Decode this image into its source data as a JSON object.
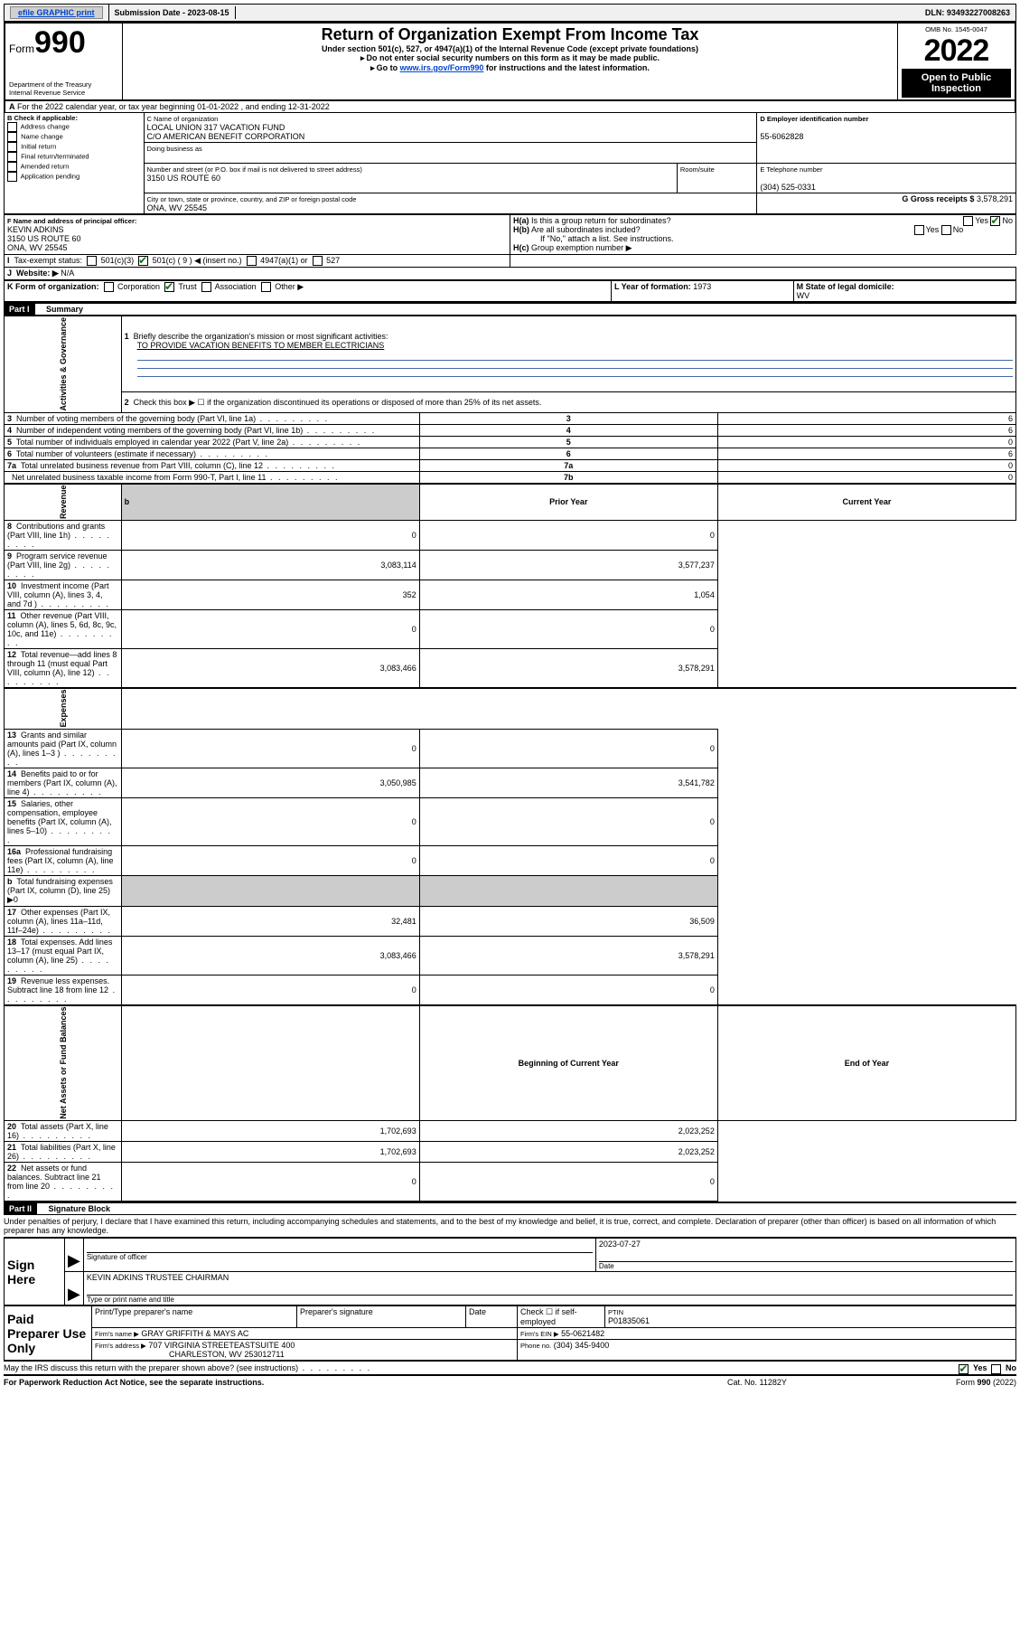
{
  "topbar": {
    "efile": "efile GRAPHIC print",
    "sub_label": "Submission Date - 2023-08-15",
    "dln": "DLN: 93493227008263"
  },
  "header": {
    "form": "990",
    "form_word": "Form",
    "title": "Return of Organization Exempt From Income Tax",
    "sub1": "Under section 501(c), 527, or 4947(a)(1) of the Internal Revenue Code (except private foundations)",
    "sub2": "Do not enter social security numbers on this form as it may be made public.",
    "sub3": "Go to ",
    "sub3_link": "www.irs.gov/Form990",
    "sub3_tail": " for instructions and the latest information.",
    "dept": "Department of the Treasury",
    "irs": "Internal Revenue Service",
    "omb": "OMB No. 1545-0047",
    "year": "2022",
    "open": "Open to Public Inspection"
  },
  "lineA": "For the 2022 calendar year, or tax year beginning 01-01-2022   , and ending 12-31-2022",
  "boxB": {
    "hdr": "B Check if applicable:",
    "opts": [
      "Address change",
      "Name change",
      "Initial return",
      "Final return/terminated",
      "Amended return",
      "Application pending"
    ]
  },
  "boxC": {
    "label": "C Name of organization",
    "name1": "LOCAL UNION 317 VACATION FUND",
    "name2": "C/O AMERICAN BENEFIT CORPORATION",
    "dba": "Doing business as",
    "addr_label": "Number and street (or P.O. box if mail is not delivered to street address)",
    "room": "Room/suite",
    "addr": "3150 US ROUTE 60",
    "city_label": "City or town, state or province, country, and ZIP or foreign postal code",
    "city": "ONA, WV  25545"
  },
  "boxD": {
    "label": "D Employer identification number",
    "val": "55-6062828"
  },
  "boxE": {
    "label": "E Telephone number",
    "val": "(304) 525-0331"
  },
  "boxG": {
    "label": "G Gross receipts $",
    "val": "3,578,291"
  },
  "boxF": {
    "label": "F Name and address of principal officer:",
    "l1": "KEVIN ADKINS",
    "l2": "3150 US ROUTE 60",
    "l3": "ONA, WV  25545"
  },
  "boxH": {
    "a": "Is this a group return for subordinates?",
    "b": "Are all subordinates included?",
    "note": "If \"No,\" attach a list. See instructions.",
    "c": "Group exemption number ▶",
    "yes": "Yes",
    "no": "No"
  },
  "boxI": {
    "label": "Tax-exempt status:",
    "o1": "501(c)(3)",
    "o2": "501(c) ( 9 ) ◀ (insert no.)",
    "o3": "4947(a)(1) or",
    "o4": "527"
  },
  "boxJ": {
    "label": "Website: ▶",
    "val": "N/A"
  },
  "boxK": {
    "label": "K Form of organization:",
    "o1": "Corporation",
    "o2": "Trust",
    "o3": "Association",
    "o4": "Other ▶"
  },
  "boxL": {
    "label": "L Year of formation:",
    "val": "1973"
  },
  "boxM": {
    "label": "M State of legal domicile:",
    "val": "WV"
  },
  "part1": {
    "hdr": "Part I",
    "title": "Summary",
    "l1": "Briefly describe the organization's mission or most significant activities:",
    "l1v": "TO PROVIDE VACATION BENEFITS TO MEMBER ELECTRICIANS",
    "l2": "Check this box ▶ ☐  if the organization discontinued its operations or disposed of more than 25% of its net assets."
  },
  "sides": {
    "gov": "Activities & Governance",
    "rev": "Revenue",
    "exp": "Expenses",
    "net": "Net Assets or Fund Balances"
  },
  "gov_rows": [
    {
      "n": "3",
      "t": "Number of voting members of the governing body (Part VI, line 1a)",
      "c": "3",
      "v": "6"
    },
    {
      "n": "4",
      "t": "Number of independent voting members of the governing body (Part VI, line 1b)",
      "c": "4",
      "v": "6"
    },
    {
      "n": "5",
      "t": "Total number of individuals employed in calendar year 2022 (Part V, line 2a)",
      "c": "5",
      "v": "0"
    },
    {
      "n": "6",
      "t": "Total number of volunteers (estimate if necessary)",
      "c": "6",
      "v": "6"
    },
    {
      "n": "7a",
      "t": "Total unrelated business revenue from Part VIII, column (C), line 12",
      "c": "7a",
      "v": "0"
    },
    {
      "n": "",
      "t": "Net unrelated business taxable income from Form 990-T, Part I, line 11",
      "c": "7b",
      "v": "0"
    }
  ],
  "col_hdr": {
    "prior": "Prior Year",
    "curr": "Current Year",
    "boy": "Beginning of Current Year",
    "eoy": "End of Year"
  },
  "rev_rows": [
    {
      "n": "8",
      "t": "Contributions and grants (Part VIII, line 1h)",
      "p": "0",
      "c": "0"
    },
    {
      "n": "9",
      "t": "Program service revenue (Part VIII, line 2g)",
      "p": "3,083,114",
      "c": "3,577,237"
    },
    {
      "n": "10",
      "t": "Investment income (Part VIII, column (A), lines 3, 4, and 7d )",
      "p": "352",
      "c": "1,054"
    },
    {
      "n": "11",
      "t": "Other revenue (Part VIII, column (A), lines 5, 6d, 8c, 9c, 10c, and 11e)",
      "p": "0",
      "c": "0"
    },
    {
      "n": "12",
      "t": "Total revenue—add lines 8 through 11 (must equal Part VIII, column (A), line 12)",
      "p": "3,083,466",
      "c": "3,578,291"
    }
  ],
  "exp_rows": [
    {
      "n": "13",
      "t": "Grants and similar amounts paid (Part IX, column (A), lines 1–3 )",
      "p": "0",
      "c": "0"
    },
    {
      "n": "14",
      "t": "Benefits paid to or for members (Part IX, column (A), line 4)",
      "p": "3,050,985",
      "c": "3,541,782"
    },
    {
      "n": "15",
      "t": "Salaries, other compensation, employee benefits (Part IX, column (A), lines 5–10)",
      "p": "0",
      "c": "0"
    },
    {
      "n": "16a",
      "t": "Professional fundraising fees (Part IX, column (A), line 11e)",
      "p": "0",
      "c": "0"
    },
    {
      "n": "b",
      "t": "Total fundraising expenses (Part IX, column (D), line 25) ▶0",
      "p": "",
      "c": "",
      "gray": true
    },
    {
      "n": "17",
      "t": "Other expenses (Part IX, column (A), lines 11a–11d, 11f–24e)",
      "p": "32,481",
      "c": "36,509"
    },
    {
      "n": "18",
      "t": "Total expenses. Add lines 13–17 (must equal Part IX, column (A), line 25)",
      "p": "3,083,466",
      "c": "3,578,291"
    },
    {
      "n": "19",
      "t": "Revenue less expenses. Subtract line 18 from line 12",
      "p": "0",
      "c": "0"
    }
  ],
  "net_rows": [
    {
      "n": "20",
      "t": "Total assets (Part X, line 16)",
      "p": "1,702,693",
      "c": "2,023,252"
    },
    {
      "n": "21",
      "t": "Total liabilities (Part X, line 26)",
      "p": "1,702,693",
      "c": "2,023,252"
    },
    {
      "n": "22",
      "t": "Net assets or fund balances. Subtract line 21 from line 20",
      "p": "0",
      "c": "0"
    }
  ],
  "part2": {
    "hdr": "Part II",
    "title": "Signature Block",
    "decl": "Under penalties of perjury, I declare that I have examined this return, including accompanying schedules and statements, and to the best of my knowledge and belief, it is true, correct, and complete. Declaration of preparer (other than officer) is based on all information of which preparer has any knowledge."
  },
  "sign": {
    "here": "Sign Here",
    "sig_label": "Signature of officer",
    "date_label": "Date",
    "date": "2023-07-27",
    "name": "KEVIN ADKINS  TRUSTEE CHAIRMAN",
    "name_label": "Type or print name and title"
  },
  "paid": {
    "hdr": "Paid Preparer Use Only",
    "c1": "Print/Type preparer's name",
    "c2": "Preparer's signature",
    "c3": "Date",
    "c4": "Check ☐ if self-employed",
    "c5l": "PTIN",
    "c5v": "P01835061",
    "firm_l": "Firm's name    ▶",
    "firm_v": "GRAY GRIFFITH & MAYS AC",
    "ein_l": "Firm's EIN ▶",
    "ein_v": "55-0621482",
    "addr_l": "Firm's address ▶",
    "addr_v1": "707 VIRGINIA STREETEASTSUITE 400",
    "addr_v2": "CHARLESTON, WV  253012711",
    "phone_l": "Phone no.",
    "phone_v": "(304) 345-9400"
  },
  "footer": {
    "q": "May the IRS discuss this return with the preparer shown above? (see instructions)",
    "yes": "Yes",
    "no": "No",
    "pra": "For Paperwork Reduction Act Notice, see the separate instructions.",
    "cat": "Cat. No. 11282Y",
    "form": "Form 990 (2022)"
  }
}
